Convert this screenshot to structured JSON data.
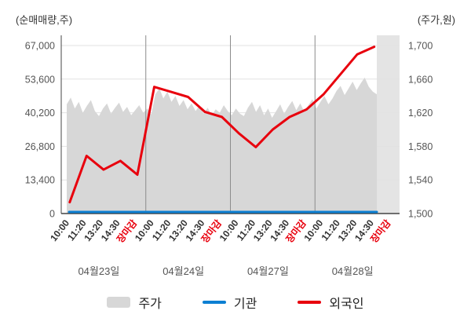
{
  "chart_data": {
    "type": "line",
    "left_axis": {
      "label": "(순매매량,주)",
      "ticks": [
        0,
        13400,
        26800,
        40200,
        53600,
        67000
      ],
      "tick_labels": [
        "0",
        "13,400",
        "26,800",
        "40,200",
        "53,600",
        "67,000"
      ],
      "range": [
        0,
        67000
      ]
    },
    "right_axis": {
      "label": "(주가,원)",
      "ticks": [
        1500,
        1540,
        1580,
        1620,
        1660,
        1700
      ],
      "tick_labels": [
        "1,500",
        "1,540",
        "1,580",
        "1,620",
        "1,660",
        "1,700"
      ],
      "range": [
        1500,
        1700
      ]
    },
    "x_labels": [
      "10:00",
      "11:20",
      "13:20",
      "14:30",
      "장마감",
      "10:00",
      "11:20",
      "13:20",
      "14:30",
      "장마감",
      "10:00",
      "11:20",
      "13:20",
      "14:30",
      "장마감",
      "10:00",
      "11:20",
      "13:20",
      "14:30",
      "장마감"
    ],
    "close_label": "장마감",
    "dates": [
      "04월23일",
      "04월24일",
      "04월27일",
      "04월28일"
    ],
    "legend": [
      "주가",
      "기관",
      "외국인"
    ],
    "series": [
      {
        "name": "주가",
        "type": "area",
        "axis": "right",
        "color": "#d7d7d7",
        "values": [
          1630,
          1638,
          1625,
          1633,
          1620,
          1628,
          1635,
          1622,
          1616,
          1625,
          1631,
          1619,
          1626,
          1632,
          1621,
          1627,
          1617,
          1623,
          1629,
          1620,
          1625,
          1618,
          1642,
          1649,
          1637,
          1645,
          1633,
          1640,
          1628,
          1635,
          1624,
          1631,
          1622,
          1629,
          1619,
          1626,
          1617,
          1624,
          1620,
          1629,
          1622,
          1617,
          1625,
          1619,
          1616,
          1626,
          1633,
          1621,
          1629,
          1617,
          1625,
          1614,
          1622,
          1630,
          1619,
          1627,
          1634,
          1623,
          1631,
          1621,
          1629,
          1636,
          1625,
          1633,
          1640,
          1630,
          1637,
          1646,
          1652,
          1641,
          1649,
          1657,
          1647,
          1655,
          1662,
          1651,
          1645,
          1642
        ]
      },
      {
        "name": "기관",
        "type": "line",
        "axis": "left",
        "color": "#0c7fd2",
        "values": [
          0,
          0,
          0,
          0,
          0,
          0,
          0,
          0,
          0,
          0,
          0,
          0,
          0,
          0,
          0,
          0,
          0,
          0,
          0
        ]
      },
      {
        "name": "외국인",
        "type": "line",
        "axis": "left",
        "color": "#e8000d",
        "values": [
          4500,
          23000,
          17500,
          21000,
          15500,
          50500,
          48500,
          46500,
          40500,
          38500,
          32000,
          26500,
          33500,
          38500,
          41500,
          47500,
          55500,
          63500,
          66500
        ]
      }
    ],
    "colors": {
      "grid": "#e2e2e2",
      "day_separator": "#8c8c8c",
      "axis": "#444444",
      "no_data_region": "#e4e4e4"
    }
  }
}
